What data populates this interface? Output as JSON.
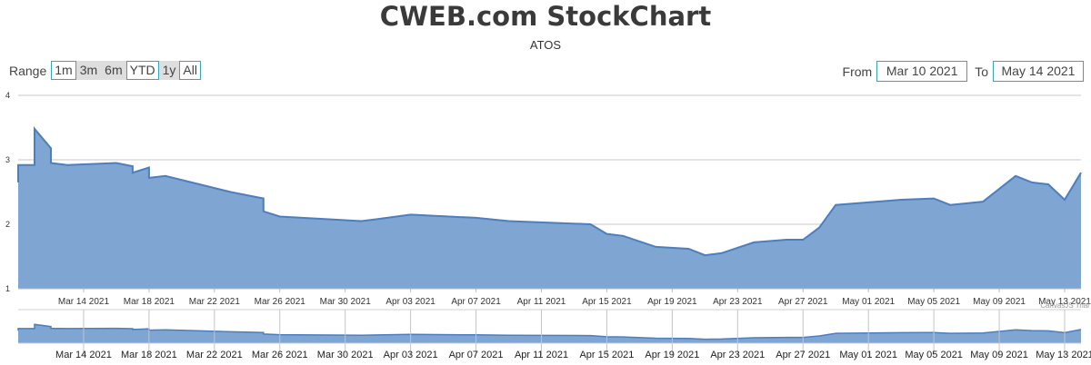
{
  "header": {
    "title": "CWEB.com StockChart",
    "subtitle": "ATOS"
  },
  "range_selector": {
    "label": "Range",
    "buttons": [
      "1m",
      "3m",
      "6m",
      "YTD",
      "1y",
      "All"
    ]
  },
  "date_range": {
    "from_label": "From",
    "from_value": "Mar 10 2021",
    "to_label": "To",
    "to_value": "May 14 2021"
  },
  "watermark": "CanvasJS Trial",
  "colors": {
    "area_fill": "#7fa5d2",
    "area_line": "#4d7ebd",
    "accent": "#2fa6cd"
  },
  "chart_data": {
    "type": "area",
    "title": "CWEB.com StockChart",
    "subtitle": "ATOS",
    "ylim": [
      1,
      4
    ],
    "yticks": [
      "1",
      "2",
      "3",
      "4"
    ],
    "xlim": [
      "2021-03-10",
      "2021-05-14"
    ],
    "xticks": [
      "Mar 14 2021",
      "Mar 18 2021",
      "Mar 22 2021",
      "Mar 26 2021",
      "Mar 30 2021",
      "Apr 03 2021",
      "Apr 07 2021",
      "Apr 11 2021",
      "Apr 15 2021",
      "Apr 19 2021",
      "Apr 23 2021",
      "Apr 27 2021",
      "May 01 2021",
      "May 05 2021",
      "May 09 2021",
      "May 13 2021"
    ],
    "navigator_xticks": [
      "Mar 14 2021",
      "Mar 18 2021",
      "Mar 22 2021",
      "Mar 26 2021",
      "Mar 30 2021",
      "Apr 03 2021",
      "Apr 07 2021",
      "Apr 11 2021",
      "Apr 15 2021",
      "Apr 19 2021",
      "Apr 23 2021",
      "Apr 27 2021",
      "May 01 2021",
      "May 05 2021",
      "May 09 2021",
      "May 13 2021"
    ],
    "grid": true,
    "x": [
      "2021-03-10",
      "2021-03-10",
      "2021-03-11",
      "2021-03-11",
      "2021-03-12",
      "2021-03-12",
      "2021-03-13",
      "2021-03-16",
      "2021-03-17",
      "2021-03-17",
      "2021-03-18",
      "2021-03-18",
      "2021-03-19",
      "2021-03-23",
      "2021-03-25",
      "2021-03-25",
      "2021-03-26",
      "2021-03-31",
      "2021-04-01",
      "2021-04-03",
      "2021-04-07",
      "2021-04-09",
      "2021-04-14",
      "2021-04-15",
      "2021-04-16",
      "2021-04-18",
      "2021-04-20",
      "2021-04-21",
      "2021-04-22",
      "2021-04-24",
      "2021-04-26",
      "2021-04-27",
      "2021-04-28",
      "2021-04-29",
      "2021-05-03",
      "2021-05-05",
      "2021-05-06",
      "2021-05-08",
      "2021-05-10",
      "2021-05-10",
      "2021-05-11",
      "2021-05-12",
      "2021-05-13",
      "2021-05-14"
    ],
    "values": [
      2.65,
      2.92,
      2.92,
      3.48,
      3.18,
      2.95,
      2.92,
      2.95,
      2.9,
      2.8,
      2.88,
      2.72,
      2.75,
      2.5,
      2.4,
      2.2,
      2.12,
      2.05,
      2.08,
      2.15,
      2.1,
      2.05,
      2.0,
      1.85,
      1.82,
      1.65,
      1.62,
      1.52,
      1.55,
      1.72,
      1.76,
      1.76,
      1.95,
      2.3,
      2.38,
      2.4,
      2.3,
      2.35,
      2.75,
      2.75,
      2.65,
      2.62,
      2.38,
      2.8
    ]
  }
}
